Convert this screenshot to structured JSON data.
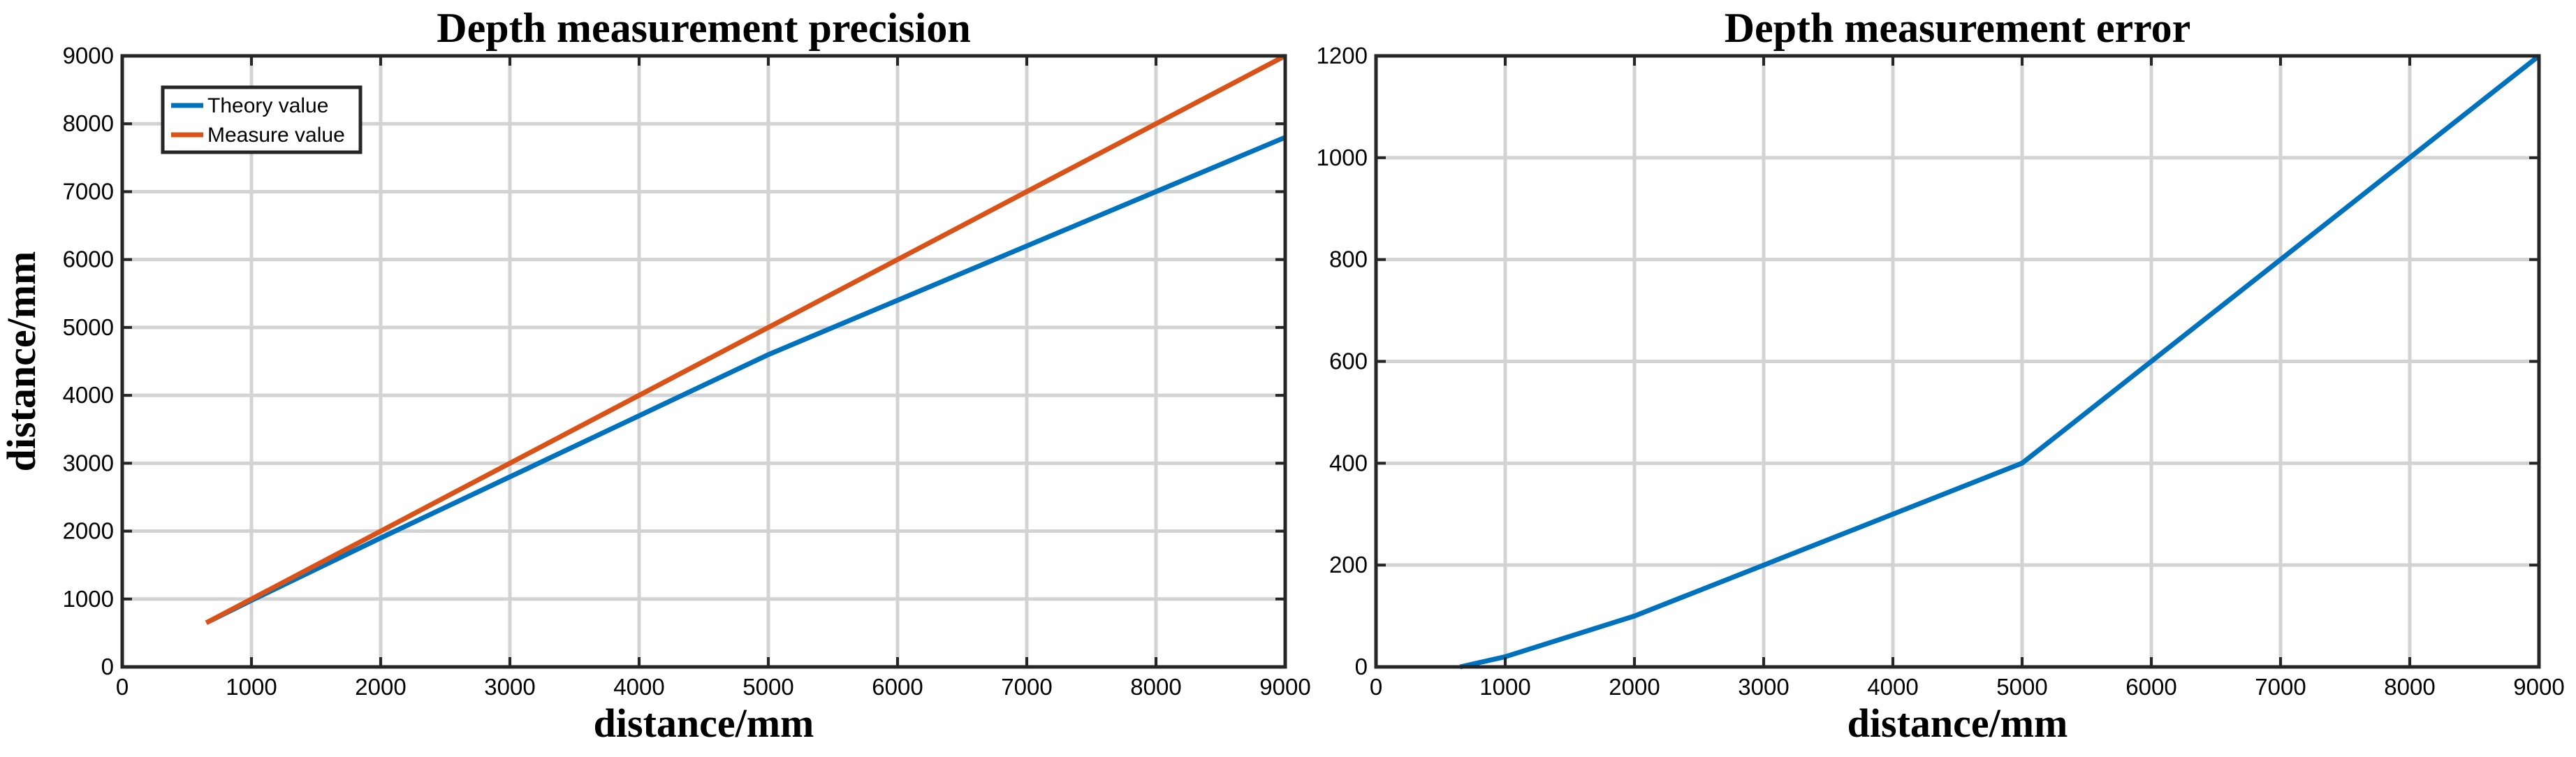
{
  "chart_data": [
    {
      "type": "line",
      "title": "Depth measurement precision",
      "xlabel": "distance/mm",
      "ylabel": "distance/mm",
      "xlim": [
        0,
        9000
      ],
      "ylim": [
        0,
        9000
      ],
      "xticks": [
        0,
        1000,
        2000,
        3000,
        4000,
        5000,
        6000,
        7000,
        8000,
        9000
      ],
      "yticks": [
        0,
        1000,
        2000,
        3000,
        4000,
        5000,
        6000,
        7000,
        8000,
        9000
      ],
      "grid": true,
      "legend_position": "top-left",
      "series": [
        {
          "name": "Theory value",
          "color": "#0072BD",
          "x": [
            650,
            1000,
            2000,
            3000,
            4000,
            5000,
            6000,
            7000,
            8000,
            9000
          ],
          "y": [
            650,
            980,
            1900,
            2800,
            3700,
            4600,
            5400,
            6200,
            7000,
            7800
          ]
        },
        {
          "name": "Measure value",
          "color": "#D95319",
          "x": [
            650,
            1000,
            2000,
            3000,
            4000,
            5000,
            6000,
            7000,
            8000,
            9000
          ],
          "y": [
            650,
            1000,
            2000,
            3000,
            4000,
            5000,
            6000,
            7000,
            8000,
            9000
          ]
        }
      ]
    },
    {
      "type": "line",
      "title": "Depth measurement error",
      "xlabel": "distance/mm",
      "ylabel": "",
      "xlim": [
        0,
        9000
      ],
      "ylim": [
        0,
        1200
      ],
      "xticks": [
        0,
        1000,
        2000,
        3000,
        4000,
        5000,
        6000,
        7000,
        8000,
        9000
      ],
      "yticks": [
        0,
        200,
        400,
        600,
        800,
        1000,
        1200
      ],
      "grid": true,
      "series": [
        {
          "color": "#0072BD",
          "x": [
            650,
            1000,
            2000,
            3000,
            4000,
            5000,
            6000,
            7000,
            8000,
            9000
          ],
          "y": [
            0,
            20,
            100,
            200,
            300,
            400,
            600,
            800,
            1000,
            1200
          ]
        }
      ]
    }
  ]
}
